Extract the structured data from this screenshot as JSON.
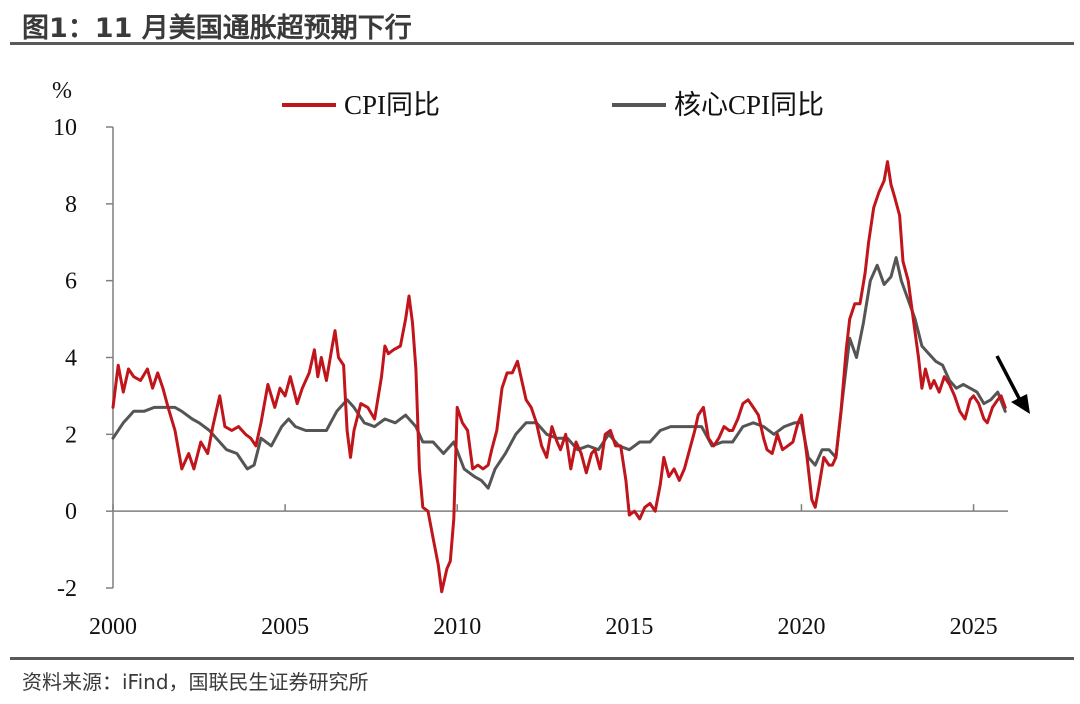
{
  "figure": {
    "title": "图1：11 月美国通胀超预期下行",
    "source": "资料来源：iFind，国联民生证券研究所"
  },
  "colors": {
    "cpi": "#c0151b",
    "core": "#555555",
    "axis": "#7f7f7f",
    "arrow": "#000000"
  },
  "chart_data": {
    "type": "line",
    "ylabel": "%",
    "ylim": [
      -2,
      10
    ],
    "yticks": [
      -2,
      0,
      2,
      4,
      6,
      8,
      10
    ],
    "xlim": [
      2000,
      2026
    ],
    "xticks": [
      2000,
      2005,
      2010,
      2015,
      2020,
      2025
    ],
    "grid": false,
    "legend_position": "top",
    "annotation": "downward arrow at end of series (late 2025)",
    "series": [
      {
        "name": "CPI同比",
        "color": "#c0151b",
        "points": [
          [
            2000.0,
            2.7
          ],
          [
            2000.15,
            3.8
          ],
          [
            2000.3,
            3.1
          ],
          [
            2000.45,
            3.7
          ],
          [
            2000.6,
            3.5
          ],
          [
            2000.8,
            3.4
          ],
          [
            2001.0,
            3.7
          ],
          [
            2001.15,
            3.2
          ],
          [
            2001.3,
            3.6
          ],
          [
            2001.45,
            3.2
          ],
          [
            2001.6,
            2.7
          ],
          [
            2001.8,
            2.1
          ],
          [
            2002.0,
            1.1
          ],
          [
            2002.2,
            1.5
          ],
          [
            2002.35,
            1.1
          ],
          [
            2002.55,
            1.8
          ],
          [
            2002.75,
            1.5
          ],
          [
            2002.9,
            2.2
          ],
          [
            2003.1,
            3.0
          ],
          [
            2003.25,
            2.2
          ],
          [
            2003.45,
            2.1
          ],
          [
            2003.65,
            2.2
          ],
          [
            2003.85,
            2.0
          ],
          [
            2004.0,
            1.9
          ],
          [
            2004.15,
            1.7
          ],
          [
            2004.3,
            2.3
          ],
          [
            2004.5,
            3.3
          ],
          [
            2004.7,
            2.7
          ],
          [
            2004.85,
            3.2
          ],
          [
            2005.0,
            3.0
          ],
          [
            2005.15,
            3.5
          ],
          [
            2005.35,
            2.8
          ],
          [
            2005.5,
            3.2
          ],
          [
            2005.7,
            3.6
          ],
          [
            2005.85,
            4.2
          ],
          [
            2005.95,
            3.5
          ],
          [
            2006.05,
            4.0
          ],
          [
            2006.2,
            3.4
          ],
          [
            2006.35,
            4.2
          ],
          [
            2006.45,
            4.7
          ],
          [
            2006.55,
            4.0
          ],
          [
            2006.7,
            3.8
          ],
          [
            2006.8,
            2.1
          ],
          [
            2006.9,
            1.4
          ],
          [
            2007.0,
            2.1
          ],
          [
            2007.2,
            2.8
          ],
          [
            2007.4,
            2.7
          ],
          [
            2007.6,
            2.4
          ],
          [
            2007.8,
            3.5
          ],
          [
            2007.9,
            4.3
          ],
          [
            2008.0,
            4.1
          ],
          [
            2008.15,
            4.2
          ],
          [
            2008.35,
            4.3
          ],
          [
            2008.5,
            5.0
          ],
          [
            2008.6,
            5.6
          ],
          [
            2008.7,
            4.9
          ],
          [
            2008.8,
            3.7
          ],
          [
            2008.9,
            1.1
          ],
          [
            2009.0,
            0.1
          ],
          [
            2009.15,
            0.0
          ],
          [
            2009.3,
            -0.7
          ],
          [
            2009.45,
            -1.4
          ],
          [
            2009.55,
            -2.1
          ],
          [
            2009.7,
            -1.5
          ],
          [
            2009.8,
            -1.3
          ],
          [
            2009.9,
            -0.2
          ],
          [
            2010.0,
            2.7
          ],
          [
            2010.15,
            2.3
          ],
          [
            2010.3,
            2.1
          ],
          [
            2010.45,
            1.1
          ],
          [
            2010.6,
            1.2
          ],
          [
            2010.75,
            1.1
          ],
          [
            2010.9,
            1.2
          ],
          [
            2011.0,
            1.6
          ],
          [
            2011.15,
            2.1
          ],
          [
            2011.3,
            3.2
          ],
          [
            2011.45,
            3.6
          ],
          [
            2011.6,
            3.6
          ],
          [
            2011.75,
            3.9
          ],
          [
            2011.85,
            3.5
          ],
          [
            2012.0,
            2.9
          ],
          [
            2012.15,
            2.7
          ],
          [
            2012.3,
            2.3
          ],
          [
            2012.45,
            1.7
          ],
          [
            2012.6,
            1.4
          ],
          [
            2012.75,
            2.2
          ],
          [
            2012.9,
            1.8
          ],
          [
            2013.0,
            1.6
          ],
          [
            2013.15,
            2.0
          ],
          [
            2013.3,
            1.1
          ],
          [
            2013.45,
            1.8
          ],
          [
            2013.6,
            1.5
          ],
          [
            2013.75,
            1.0
          ],
          [
            2013.9,
            1.5
          ],
          [
            2014.0,
            1.6
          ],
          [
            2014.15,
            1.1
          ],
          [
            2014.3,
            2.0
          ],
          [
            2014.45,
            2.1
          ],
          [
            2014.6,
            1.7
          ],
          [
            2014.75,
            1.7
          ],
          [
            2014.9,
            0.8
          ],
          [
            2015.0,
            -0.1
          ],
          [
            2015.15,
            0.0
          ],
          [
            2015.3,
            -0.2
          ],
          [
            2015.45,
            0.1
          ],
          [
            2015.6,
            0.2
          ],
          [
            2015.75,
            0.0
          ],
          [
            2015.9,
            0.7
          ],
          [
            2016.0,
            1.4
          ],
          [
            2016.15,
            0.9
          ],
          [
            2016.3,
            1.1
          ],
          [
            2016.45,
            0.8
          ],
          [
            2016.6,
            1.1
          ],
          [
            2016.75,
            1.6
          ],
          [
            2016.9,
            2.1
          ],
          [
            2017.0,
            2.5
          ],
          [
            2017.15,
            2.7
          ],
          [
            2017.3,
            1.9
          ],
          [
            2017.45,
            1.7
          ],
          [
            2017.6,
            1.9
          ],
          [
            2017.75,
            2.2
          ],
          [
            2017.9,
            2.1
          ],
          [
            2018.0,
            2.1
          ],
          [
            2018.15,
            2.4
          ],
          [
            2018.3,
            2.8
          ],
          [
            2018.45,
            2.9
          ],
          [
            2018.6,
            2.7
          ],
          [
            2018.75,
            2.5
          ],
          [
            2018.9,
            1.9
          ],
          [
            2019.0,
            1.6
          ],
          [
            2019.15,
            1.5
          ],
          [
            2019.3,
            2.0
          ],
          [
            2019.45,
            1.6
          ],
          [
            2019.6,
            1.7
          ],
          [
            2019.75,
            1.8
          ],
          [
            2019.9,
            2.3
          ],
          [
            2020.0,
            2.5
          ],
          [
            2020.15,
            1.5
          ],
          [
            2020.3,
            0.3
          ],
          [
            2020.4,
            0.1
          ],
          [
            2020.5,
            0.6
          ],
          [
            2020.65,
            1.4
          ],
          [
            2020.8,
            1.2
          ],
          [
            2020.9,
            1.2
          ],
          [
            2021.0,
            1.4
          ],
          [
            2021.15,
            2.6
          ],
          [
            2021.3,
            4.2
          ],
          [
            2021.4,
            5.0
          ],
          [
            2021.55,
            5.4
          ],
          [
            2021.7,
            5.4
          ],
          [
            2021.85,
            6.2
          ],
          [
            2021.95,
            7.0
          ],
          [
            2022.1,
            7.9
          ],
          [
            2022.25,
            8.3
          ],
          [
            2022.4,
            8.6
          ],
          [
            2022.5,
            9.1
          ],
          [
            2022.6,
            8.5
          ],
          [
            2022.7,
            8.2
          ],
          [
            2022.85,
            7.7
          ],
          [
            2022.95,
            6.5
          ],
          [
            2023.1,
            6.0
          ],
          [
            2023.25,
            5.0
          ],
          [
            2023.4,
            4.0
          ],
          [
            2023.5,
            3.2
          ],
          [
            2023.6,
            3.7
          ],
          [
            2023.75,
            3.2
          ],
          [
            2023.85,
            3.4
          ],
          [
            2024.0,
            3.1
          ],
          [
            2024.15,
            3.5
          ],
          [
            2024.3,
            3.3
          ],
          [
            2024.45,
            3.0
          ],
          [
            2024.6,
            2.6
          ],
          [
            2024.75,
            2.4
          ],
          [
            2024.9,
            2.9
          ],
          [
            2025.0,
            3.0
          ],
          [
            2025.15,
            2.8
          ],
          [
            2025.3,
            2.4
          ],
          [
            2025.4,
            2.3
          ],
          [
            2025.55,
            2.7
          ],
          [
            2025.7,
            2.9
          ],
          [
            2025.8,
            3.0
          ],
          [
            2025.92,
            2.7
          ]
        ]
      },
      {
        "name": "核心CPI同比",
        "color": "#555555",
        "points": [
          [
            2000.0,
            1.9
          ],
          [
            2000.3,
            2.3
          ],
          [
            2000.6,
            2.6
          ],
          [
            2000.9,
            2.6
          ],
          [
            2001.2,
            2.7
          ],
          [
            2001.5,
            2.7
          ],
          [
            2001.8,
            2.7
          ],
          [
            2002.0,
            2.6
          ],
          [
            2002.3,
            2.4
          ],
          [
            2002.5,
            2.3
          ],
          [
            2002.8,
            2.1
          ],
          [
            2003.0,
            1.9
          ],
          [
            2003.3,
            1.6
          ],
          [
            2003.6,
            1.5
          ],
          [
            2003.9,
            1.1
          ],
          [
            2004.1,
            1.2
          ],
          [
            2004.3,
            1.9
          ],
          [
            2004.6,
            1.7
          ],
          [
            2004.9,
            2.2
          ],
          [
            2005.1,
            2.4
          ],
          [
            2005.3,
            2.2
          ],
          [
            2005.6,
            2.1
          ],
          [
            2005.9,
            2.1
          ],
          [
            2006.2,
            2.1
          ],
          [
            2006.5,
            2.6
          ],
          [
            2006.8,
            2.9
          ],
          [
            2007.0,
            2.7
          ],
          [
            2007.3,
            2.3
          ],
          [
            2007.6,
            2.2
          ],
          [
            2007.9,
            2.4
          ],
          [
            2008.2,
            2.3
          ],
          [
            2008.5,
            2.5
          ],
          [
            2008.8,
            2.2
          ],
          [
            2009.0,
            1.8
          ],
          [
            2009.3,
            1.8
          ],
          [
            2009.6,
            1.5
          ],
          [
            2009.9,
            1.8
          ],
          [
            2010.2,
            1.1
          ],
          [
            2010.5,
            0.9
          ],
          [
            2010.7,
            0.8
          ],
          [
            2010.9,
            0.6
          ],
          [
            2011.1,
            1.1
          ],
          [
            2011.4,
            1.5
          ],
          [
            2011.7,
            2.0
          ],
          [
            2012.0,
            2.3
          ],
          [
            2012.3,
            2.3
          ],
          [
            2012.6,
            2.0
          ],
          [
            2012.9,
            1.9
          ],
          [
            2013.2,
            1.9
          ],
          [
            2013.5,
            1.6
          ],
          [
            2013.8,
            1.7
          ],
          [
            2014.1,
            1.6
          ],
          [
            2014.4,
            2.0
          ],
          [
            2014.7,
            1.7
          ],
          [
            2015.0,
            1.6
          ],
          [
            2015.3,
            1.8
          ],
          [
            2015.6,
            1.8
          ],
          [
            2015.9,
            2.1
          ],
          [
            2016.2,
            2.2
          ],
          [
            2016.5,
            2.2
          ],
          [
            2016.8,
            2.2
          ],
          [
            2017.1,
            2.2
          ],
          [
            2017.4,
            1.7
          ],
          [
            2017.7,
            1.8
          ],
          [
            2018.0,
            1.8
          ],
          [
            2018.3,
            2.2
          ],
          [
            2018.6,
            2.3
          ],
          [
            2018.9,
            2.2
          ],
          [
            2019.2,
            2.0
          ],
          [
            2019.5,
            2.2
          ],
          [
            2019.8,
            2.3
          ],
          [
            2020.0,
            2.3
          ],
          [
            2020.2,
            1.4
          ],
          [
            2020.4,
            1.2
          ],
          [
            2020.6,
            1.6
          ],
          [
            2020.8,
            1.6
          ],
          [
            2021.0,
            1.4
          ],
          [
            2021.2,
            3.0
          ],
          [
            2021.4,
            4.5
          ],
          [
            2021.6,
            4.0
          ],
          [
            2021.8,
            4.9
          ],
          [
            2022.0,
            6.0
          ],
          [
            2022.2,
            6.4
          ],
          [
            2022.4,
            5.9
          ],
          [
            2022.6,
            6.1
          ],
          [
            2022.75,
            6.6
          ],
          [
            2022.9,
            6.0
          ],
          [
            2023.1,
            5.5
          ],
          [
            2023.3,
            5.0
          ],
          [
            2023.5,
            4.3
          ],
          [
            2023.7,
            4.1
          ],
          [
            2023.9,
            3.9
          ],
          [
            2024.1,
            3.8
          ],
          [
            2024.3,
            3.4
          ],
          [
            2024.5,
            3.2
          ],
          [
            2024.7,
            3.3
          ],
          [
            2024.9,
            3.2
          ],
          [
            2025.1,
            3.1
          ],
          [
            2025.3,
            2.8
          ],
          [
            2025.5,
            2.9
          ],
          [
            2025.7,
            3.1
          ],
          [
            2025.92,
            2.6
          ]
        ]
      }
    ]
  }
}
